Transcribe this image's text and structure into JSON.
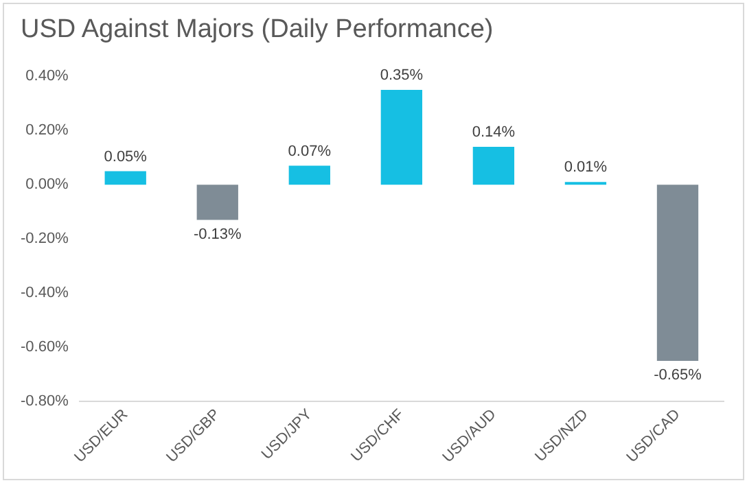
{
  "chart_data": {
    "type": "bar",
    "title": "USD Against Majors (Daily Performance)",
    "categories": [
      "USD/EUR",
      "USD/GBP",
      "USD/JPY",
      "USD/CHF",
      "USD/AUD",
      "USD/NZD",
      "USD/CAD"
    ],
    "values": [
      0.05,
      -0.13,
      0.07,
      0.35,
      0.14,
      0.01,
      -0.65
    ],
    "colors": [
      "#16bfe3",
      "#7f8c96",
      "#16bfe3",
      "#16bfe3",
      "#16bfe3",
      "#16bfe3",
      "#7f8c96"
    ],
    "value_labels": [
      "0.05%",
      "-0.13%",
      "0.07%",
      "0.35%",
      "0.14%",
      "0.01%",
      "-0.65%"
    ],
    "ylim": [
      -0.8,
      0.4
    ],
    "yticks": [
      {
        "value": -0.8,
        "label": "-0.80%"
      },
      {
        "value": -0.6,
        "label": "-0.60%"
      },
      {
        "value": -0.4,
        "label": "-0.40%"
      },
      {
        "value": -0.2,
        "label": "-0.20%"
      },
      {
        "value": 0,
        "label": "0.00%"
      },
      {
        "value": 0.2,
        "label": "0.20%"
      },
      {
        "value": 0.4,
        "label": "0.40%"
      }
    ],
    "grid": false,
    "legend": false
  }
}
